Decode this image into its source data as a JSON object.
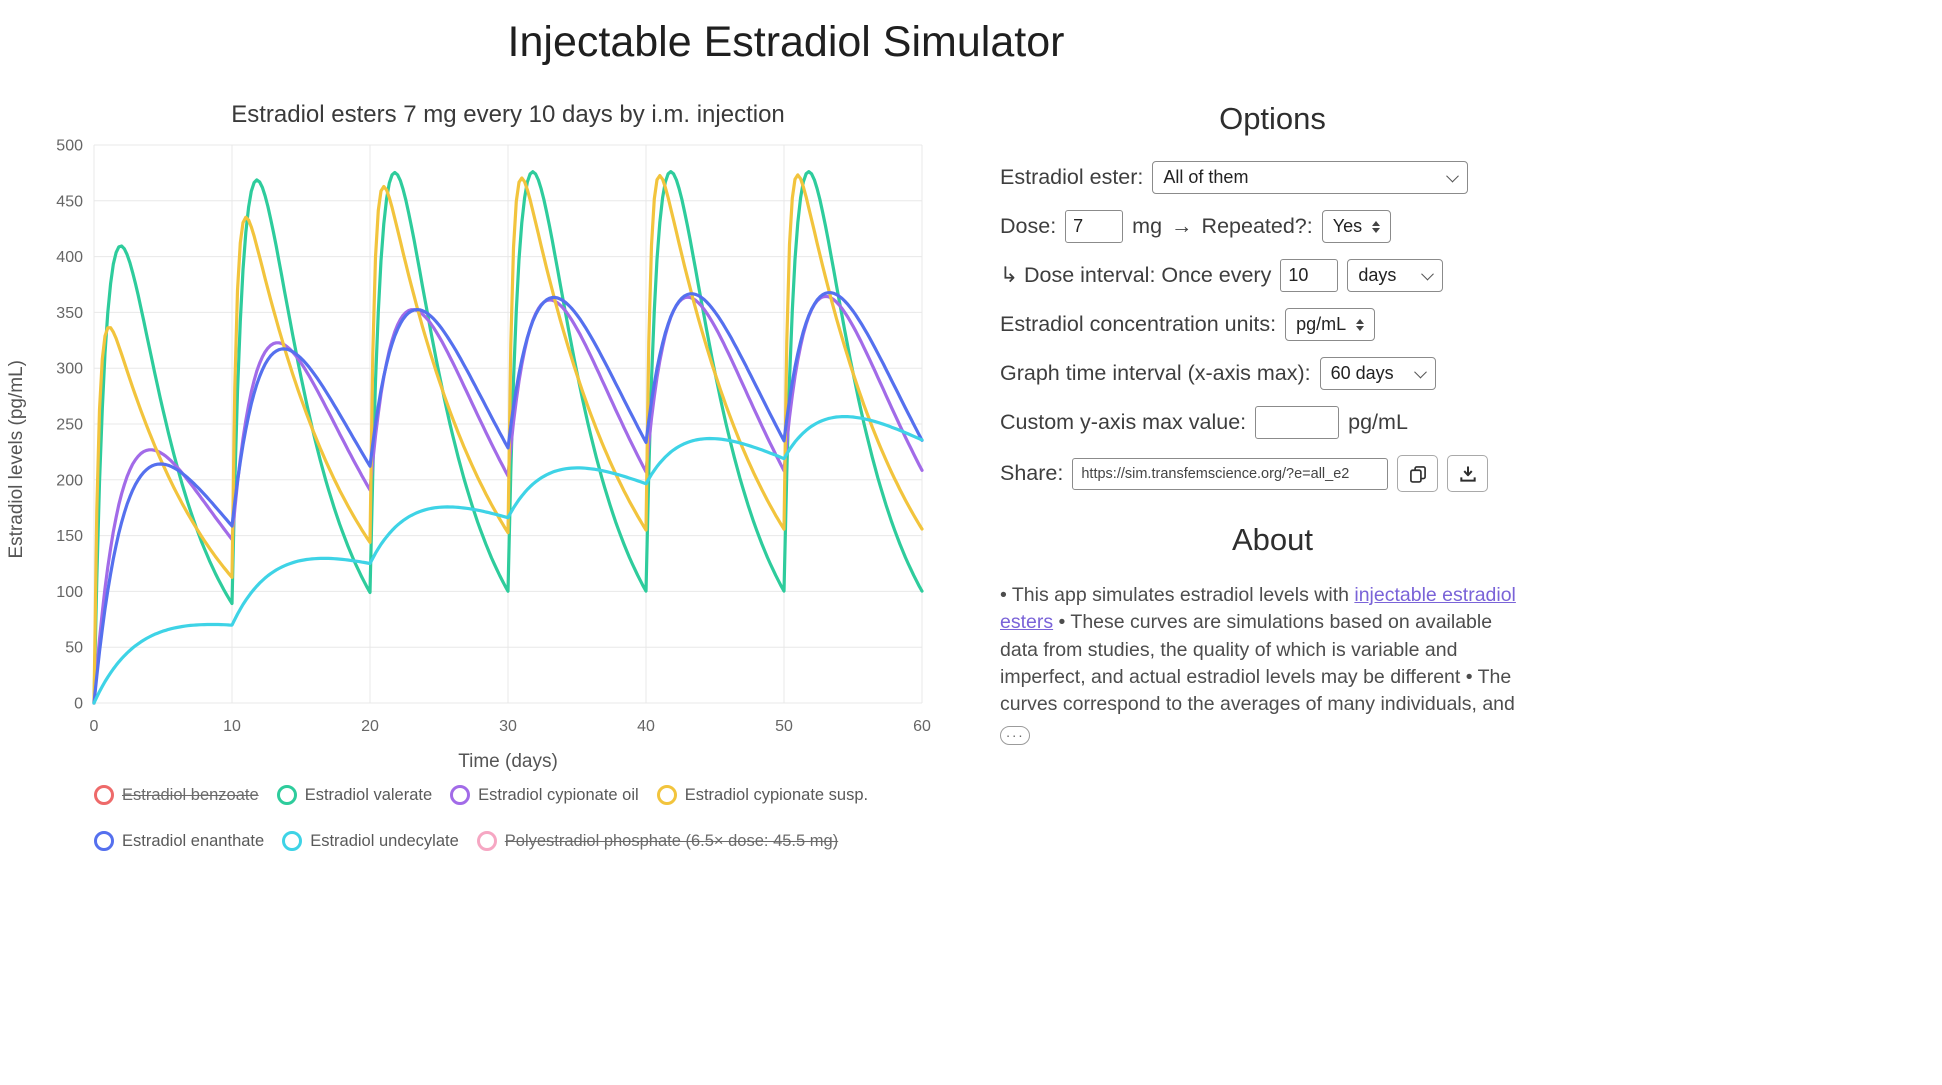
{
  "page": {
    "title": "Injectable Estradiol Simulator"
  },
  "theme": {
    "link_color": "#7a63d8",
    "text_color": "#3e3e3e",
    "grid_color": "#e8e8e8"
  },
  "chart_data": {
    "type": "line",
    "title": "Estradiol esters 7 mg every 10 days by i.m. injection",
    "xlabel": "Time (days)",
    "ylabel": "Estradiol levels (pg/mL)",
    "xlim": [
      0,
      60
    ],
    "ylim": [
      0,
      500
    ],
    "x_ticks": [
      0,
      10,
      20,
      30,
      40,
      50,
      60
    ],
    "y_ticks": [
      0,
      50,
      100,
      150,
      200,
      250,
      300,
      350,
      400,
      450,
      500
    ],
    "grid": true,
    "legend_position": "bottom",
    "dose_mg": 7,
    "dose_interval_days": 10,
    "doses_at_days": [
      0,
      10,
      20,
      30,
      40,
      50
    ],
    "series": [
      {
        "name": "Estradiol benzoate",
        "color": "#ee6a6a",
        "hidden": true
      },
      {
        "name": "Estradiol valerate",
        "color": "#2ecc9c",
        "hidden": false,
        "model": {
          "A": 805,
          "ka": 1.0,
          "ke": 0.22
        },
        "key_points": [
          {
            "day": 2,
            "level": 410
          },
          {
            "day": 10,
            "level": 88
          },
          {
            "day": 12,
            "level": 462
          },
          {
            "day": 20,
            "level": 88
          },
          {
            "day": 22,
            "level": 466
          },
          {
            "day": 52,
            "level": 467
          },
          {
            "day": 60,
            "level": 90
          }
        ]
      },
      {
        "name": "Estradiol cypionate oil",
        "color": "#a26be8",
        "hidden": false,
        "model": {
          "A": 540,
          "ka": 0.42,
          "ke": 0.125
        },
        "key_points": [
          {
            "day": 4,
            "level": 215
          },
          {
            "day": 10,
            "level": 145
          },
          {
            "day": 14,
            "level": 310
          },
          {
            "day": 24,
            "level": 345
          },
          {
            "day": 34,
            "level": 357
          },
          {
            "day": 54,
            "level": 360
          },
          {
            "day": 60,
            "level": 225
          }
        ]
      },
      {
        "name": "Estradiol cypionate susp.",
        "color": "#f2c43d",
        "hidden": false,
        "model": {
          "A": 405,
          "ka": 3.0,
          "ke": 0.128
        },
        "key_points": [
          {
            "day": 1,
            "level": 337
          },
          {
            "day": 10,
            "level": 110
          },
          {
            "day": 11,
            "level": 428
          },
          {
            "day": 21,
            "level": 455
          },
          {
            "day": 51,
            "level": 460
          },
          {
            "day": 60,
            "level": 147
          }
        ]
      },
      {
        "name": "Estradiol enanthate",
        "color": "#5570ee",
        "hidden": false,
        "model": {
          "A": 600,
          "ka": 0.33,
          "ke": 0.12
        },
        "key_points": [
          {
            "day": 6.5,
            "level": 225
          },
          {
            "day": 10.5,
            "level": 185
          },
          {
            "day": 15,
            "level": 313
          },
          {
            "day": 24,
            "level": 340
          },
          {
            "day": 34,
            "level": 350
          },
          {
            "day": 54,
            "level": 348
          },
          {
            "day": 60,
            "level": 235
          }
        ]
      },
      {
        "name": "Estradiol undecylate",
        "color": "#3ed3e6",
        "hidden": false,
        "model": {
          "A": 101,
          "ka": 0.3,
          "ke": 0.03
        },
        "key_points": [
          {
            "day": 5,
            "level": 58
          },
          {
            "day": 10,
            "level": 70
          },
          {
            "day": 15,
            "level": 128
          },
          {
            "day": 20,
            "level": 125
          },
          {
            "day": 34,
            "level": 207
          },
          {
            "day": 55,
            "level": 252
          },
          {
            "day": 60,
            "level": 245
          }
        ]
      },
      {
        "name": "Polyestradiol phosphate (6.5× dose: 45.5 mg)",
        "color": "#f6a7c3",
        "hidden": true
      }
    ]
  },
  "options_panel": {
    "heading": "Options",
    "rows": {
      "ester": {
        "label": "Estradiol ester:",
        "value": "All of them"
      },
      "dose": {
        "label": "Dose:",
        "value": "7",
        "unit": "mg",
        "arrow": "→",
        "repeated_label": "Repeated?:",
        "repeated_value": "Yes"
      },
      "interval": {
        "label": "↳ Dose interval: Once every",
        "value": "10",
        "unit_value": "days"
      },
      "units": {
        "label": "Estradiol concentration units:",
        "value": "pg/mL"
      },
      "graph_interval": {
        "label": "Graph time interval (x-axis max):",
        "value": "60 days"
      },
      "custom_ymax": {
        "label": "Custom y-axis max value:",
        "value": "",
        "unit": "pg/mL"
      },
      "share": {
        "label": "Share:",
        "value": "https://sim.transfemscience.org/?e=all_e2"
      }
    }
  },
  "about": {
    "heading": "About",
    "bullet_intro": "• This app simulates estradiol levels with ",
    "link_text": "injectable estradiol esters",
    "after_link": " • These curves are simulations based on available data from studies, the quality of which is variable and imperfect, and actual estradiol levels may be different • The curves correspond to the averages of many individuals, and ",
    "more_label": "···"
  }
}
